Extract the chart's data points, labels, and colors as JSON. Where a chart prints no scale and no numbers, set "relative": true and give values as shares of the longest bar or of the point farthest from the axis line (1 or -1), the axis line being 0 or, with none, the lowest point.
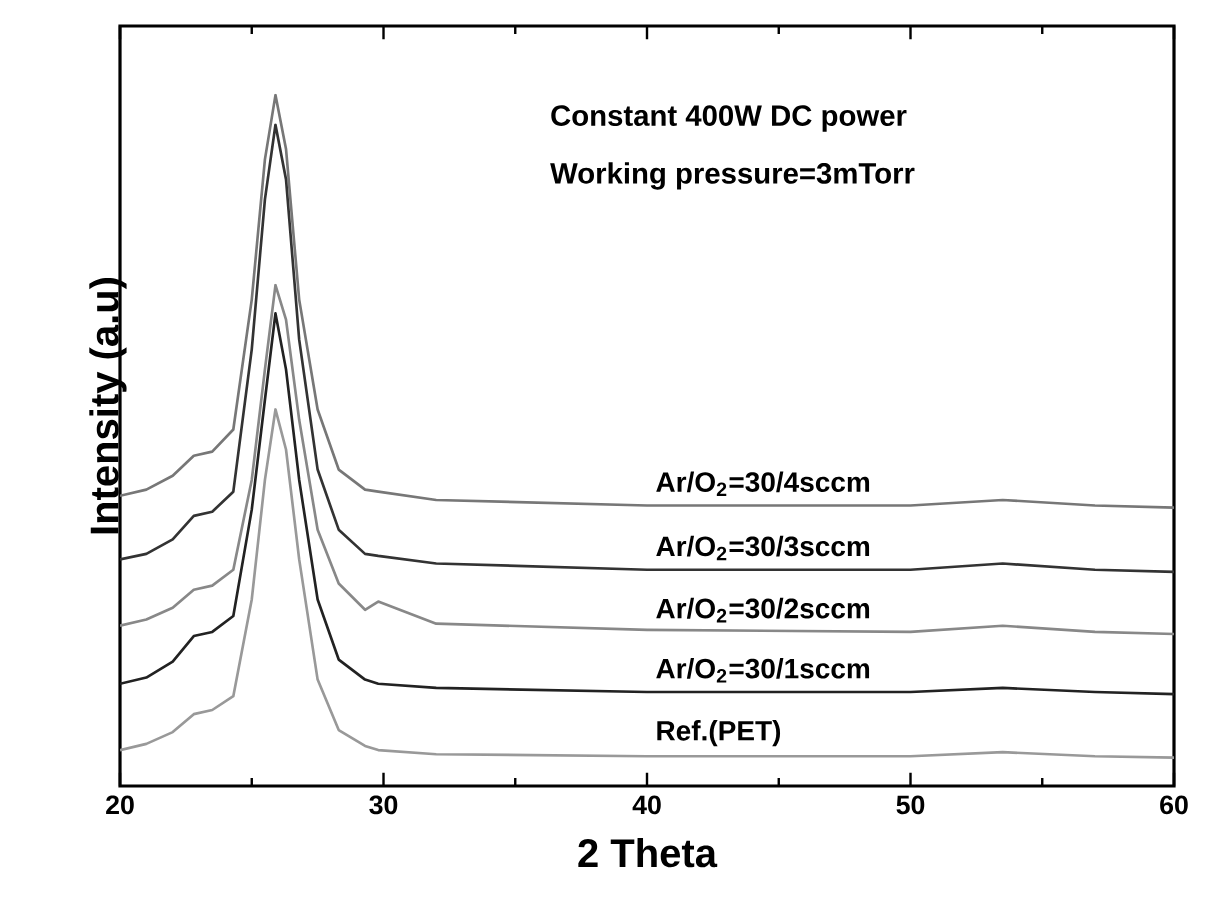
{
  "chart_data": {
    "type": "line",
    "relative": true,
    "xlabel": "2 Theta",
    "ylabel": "Intensity (a.u)",
    "annotations": [
      "Constant 400W DC power",
      "Working pressure=3mTorr"
    ],
    "x": [
      20,
      21,
      22,
      22.8,
      23.5,
      24.3,
      25.0,
      25.5,
      25.9,
      26.3,
      26.8,
      27.5,
      28.3,
      29.3,
      29.8,
      32,
      40,
      50,
      53.5,
      57,
      60
    ],
    "xlim": [
      20,
      60
    ],
    "xticks": [
      20,
      30,
      40,
      50,
      60
    ],
    "series": [
      {
        "name": "Ar/O$_{2}$=30/4sccm",
        "color": "#777777",
        "values": [
          0.42,
          0.429,
          0.449,
          0.478,
          0.484,
          0.516,
          0.704,
          0.907,
          1.0,
          0.922,
          0.704,
          0.545,
          0.458,
          0.429,
          0.426,
          0.414,
          0.406,
          0.406,
          0.414,
          0.406,
          0.403
        ]
      },
      {
        "name": "Ar/O$_{2}$=30/3sccm",
        "color": "#333333",
        "values": [
          0.328,
          0.336,
          0.357,
          0.391,
          0.397,
          0.426,
          0.632,
          0.849,
          0.957,
          0.878,
          0.646,
          0.458,
          0.371,
          0.336,
          0.333,
          0.322,
          0.313,
          0.313,
          0.322,
          0.313,
          0.31
        ]
      },
      {
        "name": "Ar/O$_{2}$=30/2sccm",
        "color": "#888888",
        "values": [
          0.232,
          0.241,
          0.258,
          0.284,
          0.29,
          0.313,
          0.443,
          0.603,
          0.725,
          0.675,
          0.53,
          0.371,
          0.293,
          0.255,
          0.267,
          0.235,
          0.226,
          0.223,
          0.232,
          0.223,
          0.22
        ]
      },
      {
        "name": "Ar/O$_{2}$=30/1sccm",
        "color": "#222222",
        "values": [
          0.148,
          0.157,
          0.18,
          0.217,
          0.223,
          0.246,
          0.4,
          0.559,
          0.684,
          0.603,
          0.443,
          0.27,
          0.183,
          0.154,
          0.148,
          0.142,
          0.136,
          0.136,
          0.142,
          0.136,
          0.133
        ]
      },
      {
        "name": "Ref.(PET)",
        "color": "#999999",
        "values": [
          0.052,
          0.061,
          0.078,
          0.104,
          0.11,
          0.13,
          0.27,
          0.443,
          0.545,
          0.487,
          0.328,
          0.154,
          0.081,
          0.058,
          0.052,
          0.046,
          0.043,
          0.043,
          0.049,
          0.043,
          0.041
        ]
      }
    ]
  }
}
